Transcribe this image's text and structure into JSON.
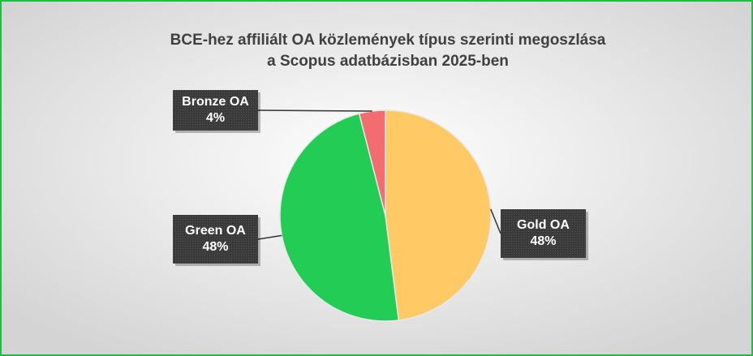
{
  "chart_data": {
    "type": "pie",
    "title": [
      "BCE-hez affiliált OA közlemények típus szerinti megoszlása",
      "a Scopus adatbázisban 2025-ben"
    ],
    "categories": [
      "Gold OA",
      "Green OA",
      "Bronze OA"
    ],
    "values": [
      48,
      48,
      4
    ],
    "value_labels": [
      "48%",
      "48%",
      "4%"
    ],
    "colors": [
      "#ffc966",
      "#22cc55",
      "#f26d6d"
    ]
  }
}
